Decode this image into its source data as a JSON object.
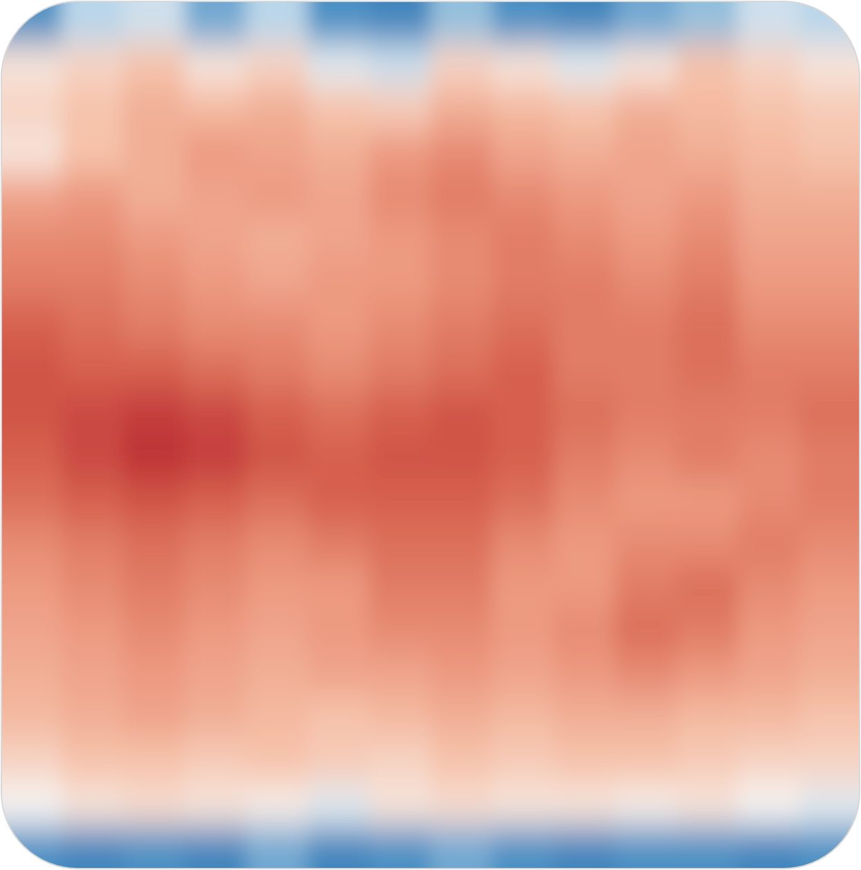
{
  "chart_data": {
    "type": "heatmap",
    "tick_labels": false,
    "vlim": [
      -1,
      1
    ],
    "cells": [
      [
        -0.6,
        -0.3,
        -0.2,
        -0.5,
        -0.3,
        -0.6,
        -0.7,
        -0.4,
        -0.6,
        -0.7,
        -0.5,
        -0.4,
        -0.2,
        -0.3
      ],
      [
        0.1,
        0.2,
        0.3,
        0.1,
        0.2,
        -0.1,
        -0.2,
        0.2,
        0.1,
        -0.1,
        0.1,
        0.3,
        0.2,
        0.1
      ],
      [
        0.2,
        0.3,
        0.4,
        0.35,
        0.4,
        0.3,
        0.25,
        0.4,
        0.35,
        0.3,
        0.4,
        0.35,
        0.3,
        0.25
      ],
      [
        0.1,
        0.3,
        0.4,
        0.5,
        0.45,
        0.4,
        0.5,
        0.55,
        0.45,
        0.4,
        0.45,
        0.4,
        0.35,
        0.3
      ],
      [
        0.45,
        0.5,
        0.4,
        0.45,
        0.5,
        0.45,
        0.55,
        0.6,
        0.55,
        0.5,
        0.45,
        0.5,
        0.4,
        0.4
      ],
      [
        0.55,
        0.55,
        0.5,
        0.45,
        0.4,
        0.45,
        0.5,
        0.55,
        0.6,
        0.55,
        0.5,
        0.55,
        0.45,
        0.45
      ],
      [
        0.6,
        0.6,
        0.55,
        0.5,
        0.45,
        0.5,
        0.5,
        0.55,
        0.6,
        0.6,
        0.55,
        0.6,
        0.5,
        0.5
      ],
      [
        0.7,
        0.65,
        0.6,
        0.55,
        0.55,
        0.5,
        0.55,
        0.6,
        0.65,
        0.6,
        0.6,
        0.65,
        0.55,
        0.55
      ],
      [
        0.75,
        0.7,
        0.7,
        0.65,
        0.6,
        0.55,
        0.6,
        0.65,
        0.7,
        0.6,
        0.6,
        0.65,
        0.6,
        0.6
      ],
      [
        0.75,
        0.8,
        0.85,
        0.8,
        0.7,
        0.65,
        0.7,
        0.75,
        0.7,
        0.65,
        0.6,
        0.6,
        0.6,
        0.65
      ],
      [
        0.7,
        0.8,
        0.9,
        0.85,
        0.75,
        0.7,
        0.75,
        0.75,
        0.7,
        0.6,
        0.55,
        0.6,
        0.55,
        0.6
      ],
      [
        0.65,
        0.7,
        0.75,
        0.7,
        0.65,
        0.7,
        0.7,
        0.7,
        0.65,
        0.55,
        0.5,
        0.5,
        0.55,
        0.6
      ],
      [
        0.55,
        0.6,
        0.65,
        0.6,
        0.55,
        0.6,
        0.65,
        0.65,
        0.55,
        0.5,
        0.55,
        0.55,
        0.6,
        0.55
      ],
      [
        0.5,
        0.55,
        0.6,
        0.55,
        0.5,
        0.5,
        0.6,
        0.6,
        0.5,
        0.5,
        0.6,
        0.65,
        0.55,
        0.5
      ],
      [
        0.45,
        0.5,
        0.55,
        0.5,
        0.45,
        0.5,
        0.55,
        0.55,
        0.5,
        0.55,
        0.65,
        0.6,
        0.5,
        0.45
      ],
      [
        0.4,
        0.45,
        0.5,
        0.45,
        0.4,
        0.45,
        0.45,
        0.5,
        0.45,
        0.5,
        0.55,
        0.5,
        0.45,
        0.4
      ],
      [
        0.35,
        0.4,
        0.45,
        0.4,
        0.35,
        0.3,
        0.35,
        0.4,
        0.35,
        0.4,
        0.4,
        0.35,
        0.35,
        0.3
      ],
      [
        0.2,
        0.3,
        0.3,
        0.25,
        0.3,
        0.25,
        0.2,
        0.3,
        0.25,
        0.3,
        0.3,
        0.25,
        0.2,
        0.2
      ],
      [
        0.0,
        0.1,
        0.15,
        0.1,
        0.05,
        -0.1,
        0.1,
        0.15,
        0.1,
        0.1,
        0.05,
        0.1,
        0.0,
        -0.1
      ],
      [
        -0.6,
        -0.7,
        -0.6,
        -0.7,
        -0.5,
        -0.7,
        -0.6,
        -0.5,
        -0.6,
        -0.7,
        -0.6,
        -0.6,
        -0.7,
        -0.6
      ]
    ]
  }
}
